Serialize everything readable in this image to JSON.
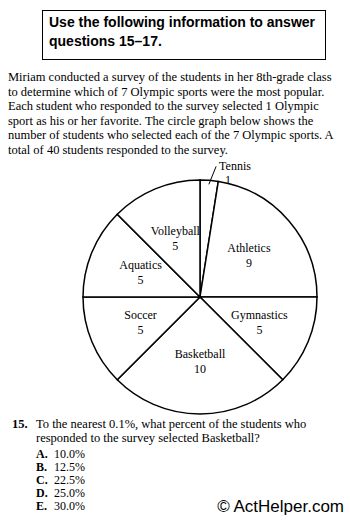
{
  "header": "Use the following information to answer questions 15–17.",
  "intro": "Miriam conducted a survey of the students in her 8th-grade class to determine which of 7 Olympic sports were the most popular. Each student who responded to the survey selected 1 Olympic sport as his or her favorite. The circle graph below shows the number of students who selected each of the 7 Olympic sports. A total of 40 students responded to the survey.",
  "chart_data": {
    "type": "pie",
    "categories": [
      "Tennis",
      "Athletics",
      "Gymnastics",
      "Basketball",
      "Soccer",
      "Aquatics",
      "Volleyball"
    ],
    "values": [
      1,
      9,
      5,
      10,
      5,
      5,
      5
    ],
    "color": "#ffffff",
    "data_labels": true
  },
  "question": {
    "number": "15.",
    "text": "To the nearest 0.1%, what percent of the students who responded to the survey selected Basketball?",
    "options": [
      {
        "letter": "A.",
        "text": "10.0%"
      },
      {
        "letter": "B.",
        "text": "12.5%"
      },
      {
        "letter": "C.",
        "text": "22.5%"
      },
      {
        "letter": "D.",
        "text": "25.0%"
      },
      {
        "letter": "E.",
        "text": "30.0%"
      }
    ]
  },
  "watermark": "© ActHelper.com"
}
